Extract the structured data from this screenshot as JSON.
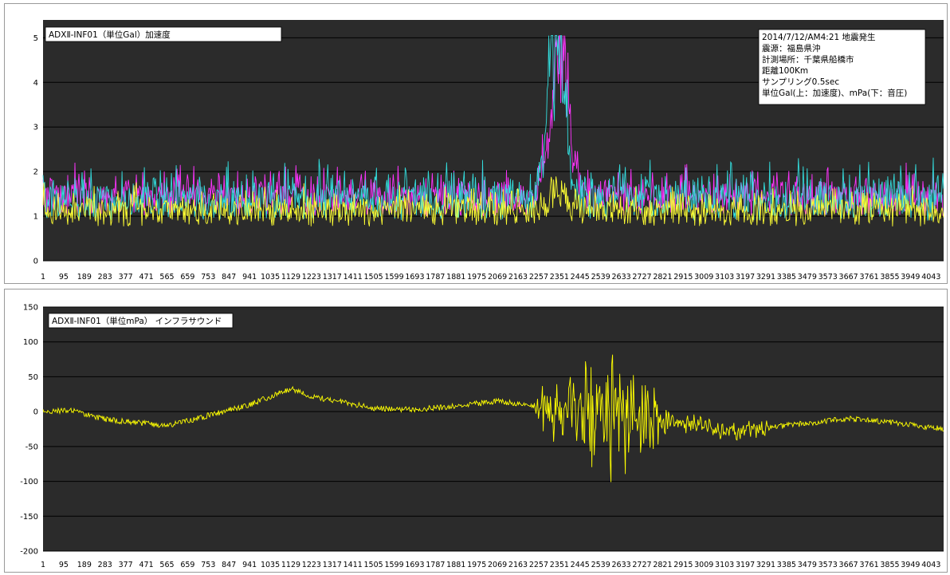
{
  "charts": [
    {
      "title": "ADXⅡ-INF01（単位Gal）加速度",
      "annotation": [
        "2014/7/12/AM4:21 地震発生",
        "震源：福島県沖",
        "計測場所：千葉県船橋市",
        "距離100Km",
        "サンプリング0.5sec",
        "単位Gal(上：加速度)、mPa(下：音圧)"
      ]
    },
    {
      "title": "ADXⅡ-INF01（単位mPa） インフラサウンド"
    }
  ],
  "chart_data": [
    {
      "type": "line",
      "title": "ADXⅡ-INF01（単位Gal）加速度",
      "x_range": [
        1,
        4100
      ],
      "x_ticks": [
        1,
        95,
        189,
        283,
        377,
        471,
        565,
        659,
        753,
        847,
        941,
        1035,
        1129,
        1223,
        1317,
        1411,
        1505,
        1599,
        1693,
        1787,
        1881,
        1975,
        2069,
        2163,
        2257,
        2351,
        2445,
        2539,
        2633,
        2727,
        2821,
        2915,
        3009,
        3103,
        3197,
        3291,
        3385,
        3479,
        3573,
        3667,
        3761,
        3855,
        3949,
        4043
      ],
      "y_ticks": [
        0,
        1,
        2,
        3,
        4,
        5
      ],
      "ylim": [
        0,
        5.4
      ],
      "grid": true,
      "background": "#2b2b2b",
      "series": [
        {
          "color": "#ff33ff",
          "baseline": 1.35,
          "noise": 0.35,
          "peak_x": 2351,
          "peak": 3.2,
          "peak_width": 60
        },
        {
          "color": "#33dddd",
          "baseline": 1.3,
          "noise": 0.4,
          "peak_x": 2335,
          "peak": 3.7,
          "peak_width": 55
        },
        {
          "color": "#ffff33",
          "baseline": 1.05,
          "noise": 0.28,
          "peak_x": 2340,
          "peak": 0.4,
          "peak_width": 50
        }
      ]
    },
    {
      "type": "line",
      "title": "ADXⅡ-INF01（単位mPa） インフラサウンド",
      "x_range": [
        1,
        4100
      ],
      "x_ticks": [
        1,
        95,
        189,
        283,
        377,
        471,
        565,
        659,
        753,
        847,
        941,
        1035,
        1129,
        1223,
        1317,
        1411,
        1505,
        1599,
        1693,
        1787,
        1881,
        1975,
        2069,
        2163,
        2257,
        2351,
        2445,
        2539,
        2633,
        2727,
        2821,
        2915,
        3009,
        3103,
        3197,
        3291,
        3385,
        3479,
        3573,
        3667,
        3761,
        3855,
        3949,
        4043
      ],
      "y_ticks": [
        -200,
        -150,
        -100,
        -50,
        0,
        50,
        100,
        150
      ],
      "ylim": [
        -200,
        150
      ],
      "grid": true,
      "background": "#2b2b2b",
      "series": [
        {
          "color": "#ffff00",
          "trend_x": [
            1,
            120,
            300,
            565,
            700,
            941,
            1129,
            1223,
            1505,
            1693,
            1881,
            2069,
            2257,
            2539,
            2821,
            3009,
            3103,
            3385,
            3667,
            3855,
            4100
          ],
          "trend_y": [
            0,
            2,
            -12,
            -20,
            -10,
            10,
            33,
            22,
            5,
            3,
            8,
            15,
            8,
            -5,
            -12,
            -20,
            -30,
            -20,
            -10,
            -15,
            -25
          ],
          "burst_x": [
            2240,
            2840
          ],
          "burst_amp": 75,
          "burst_peak": 2560
        }
      ]
    }
  ]
}
